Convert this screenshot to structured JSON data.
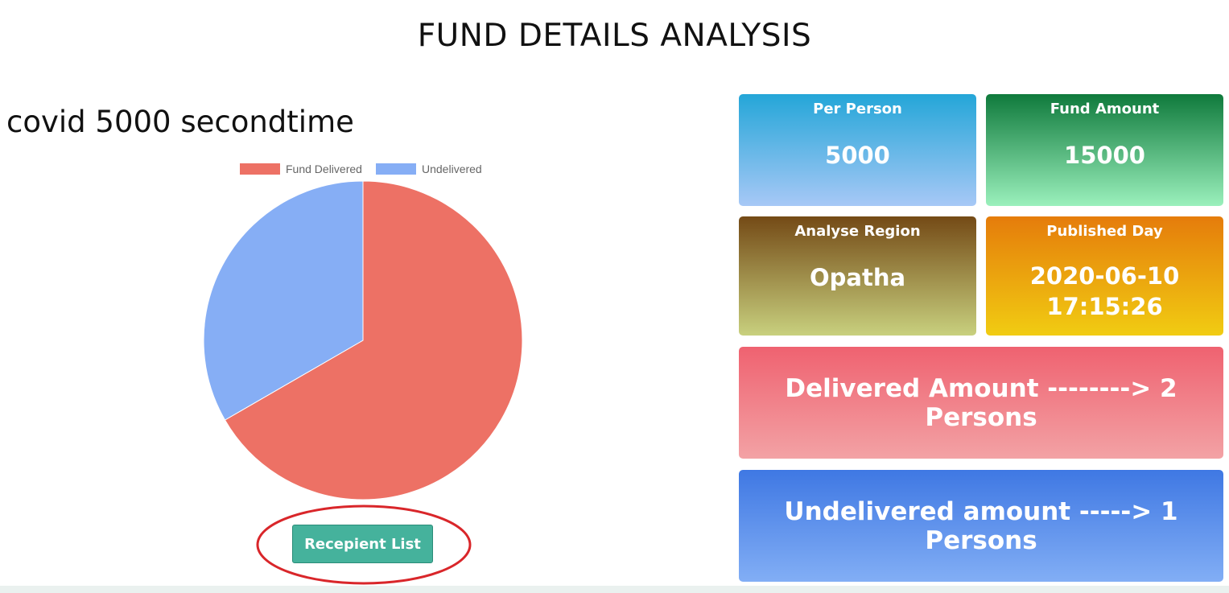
{
  "page_title": "FUND DETAILS ANALYSIS",
  "fund_name": "covid 5000 secondtime",
  "chart_data": {
    "type": "pie",
    "legend_position": "top",
    "series": [
      {
        "name": "Fund Delivered",
        "value": 2,
        "color": "#ed7165"
      },
      {
        "name": "Undelivered",
        "value": 1,
        "color": "#86aef5"
      }
    ]
  },
  "recipient_button_label": "Recepient List",
  "highlight_color": "#d9262a",
  "cards": {
    "per_person": {
      "label": "Per Person",
      "value": "5000",
      "gradient": [
        "#24a6d8",
        "#a7c8f6"
      ]
    },
    "fund_amount": {
      "label": "Fund Amount",
      "value": "15000",
      "gradient": [
        "#0f7a3c",
        "#9af0bc"
      ]
    },
    "analyse_region": {
      "label": "Analyse Region",
      "value": "Opatha",
      "gradient": [
        "#744a16",
        "#c8d07e"
      ]
    },
    "published_day": {
      "label": "Published Day",
      "value_date": "2020-06-10",
      "value_time": "17:15:26",
      "gradient": [
        "#e57c0b",
        "#f1cc12"
      ]
    },
    "delivered": {
      "text": "Delivered Amount --------> 2 Persons",
      "gradient": [
        "#ef6270",
        "#f3a2a5"
      ]
    },
    "undelivered": {
      "text": "Undelivered amount -----> 1 Persons",
      "gradient": [
        "#3f78e3",
        "#82aef5"
      ]
    }
  }
}
